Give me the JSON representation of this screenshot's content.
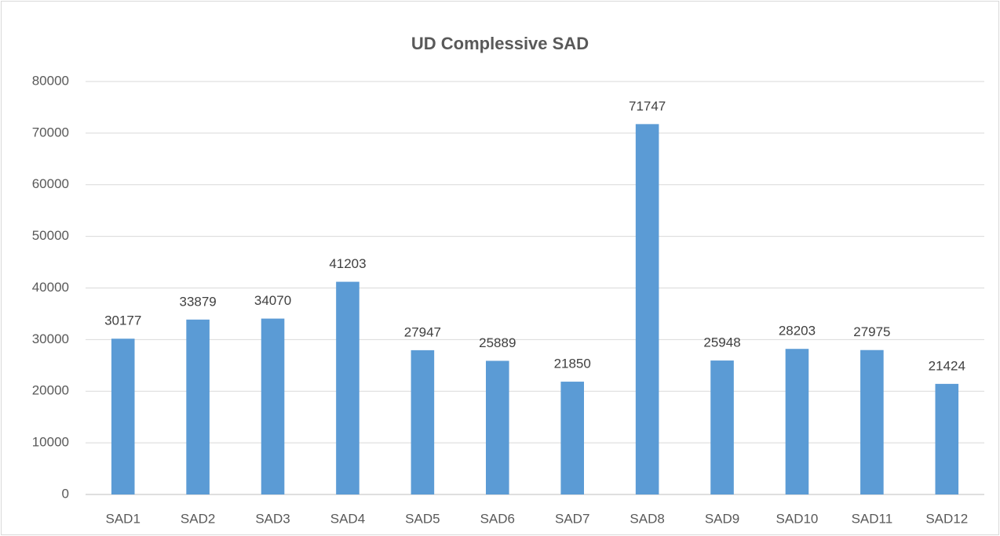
{
  "chart_data": {
    "type": "bar",
    "title": "UD Complessive SAD",
    "categories": [
      "SAD1",
      "SAD2",
      "SAD3",
      "SAD4",
      "SAD5",
      "SAD6",
      "SAD7",
      "SAD8",
      "SAD9",
      "SAD10",
      "SAD11",
      "SAD12"
    ],
    "values": [
      30177,
      33879,
      34070,
      41203,
      27947,
      25889,
      21850,
      71747,
      25948,
      28203,
      27975,
      21424
    ],
    "color": "#5b9bd5",
    "ylim": [
      0,
      80000
    ],
    "yticks": [
      0,
      10000,
      20000,
      30000,
      40000,
      50000,
      60000,
      70000,
      80000
    ],
    "grid": true
  }
}
